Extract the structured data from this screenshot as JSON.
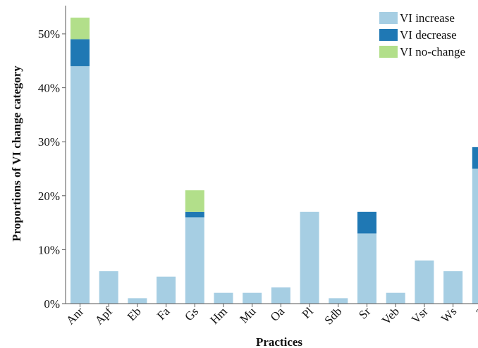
{
  "chart_data": {
    "type": "bar",
    "stacked": true,
    "xlabel": "Practices",
    "ylabel": "Proportions of VI change category",
    "categories": [
      "Anr",
      "Apf",
      "Eb",
      "Fa",
      "Gs",
      "Hm",
      "Mu",
      "Oa",
      "Pl",
      "Sdb",
      "Sr",
      "Veb",
      "Vsr",
      "Ws",
      "Z"
    ],
    "series": [
      {
        "name": "VI increase",
        "color": "#a6cee3",
        "values": [
          44,
          6,
          1,
          5,
          16,
          2,
          2,
          3,
          17,
          1,
          13,
          2,
          8,
          6,
          25
        ]
      },
      {
        "name": "VI decrease",
        "color": "#1f78b4",
        "values": [
          5,
          0,
          0,
          0,
          1,
          0,
          0,
          0,
          0,
          0,
          4,
          0,
          0,
          0,
          4
        ]
      },
      {
        "name": "VI no-change",
        "color": "#b2df8a",
        "values": [
          4,
          0,
          0,
          0,
          4,
          0,
          0,
          0,
          0,
          0,
          0,
          0,
          0,
          0,
          0
        ]
      }
    ],
    "yticks": [
      {
        "value": 0,
        "label": "0%"
      },
      {
        "value": 10,
        "label": "10%"
      },
      {
        "value": 20,
        "label": "20%"
      },
      {
        "value": 30,
        "label": "30%"
      },
      {
        "value": 40,
        "label": "40%"
      },
      {
        "value": 50,
        "label": "50%"
      }
    ],
    "ylim": [
      0,
      55
    ],
    "grid": false,
    "legend_position": "top-right"
  }
}
